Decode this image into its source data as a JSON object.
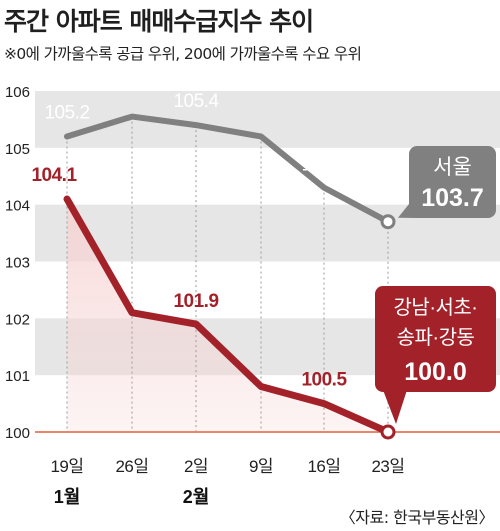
{
  "chart_data": {
    "type": "line",
    "title": "주간 아파트 매매수급지수 추이",
    "subtitle": "※0에 가까울수록 공급 우위, 200에 가까울수록 수요 우위",
    "x": [
      "19일",
      "26일",
      "2일",
      "9일",
      "16일",
      "23일"
    ],
    "month_labels": [
      {
        "index": 0,
        "label": "1월"
      },
      {
        "index": 2,
        "label": "2월"
      }
    ],
    "ylim": [
      100,
      106
    ],
    "yticks": [
      "100",
      "101",
      "102",
      "103",
      "104",
      "105",
      "106"
    ],
    "grid": "horizontal bands, dotted vertical lines",
    "series": [
      {
        "name": "서울",
        "values": [
          105.2,
          105.55,
          105.4,
          105.2,
          104.3,
          103.7
        ],
        "color": "#808080",
        "point_labels": [
          {
            "index": 0,
            "text": "105.2"
          },
          {
            "index": 2,
            "text": "105.4"
          },
          {
            "index": 4,
            "text": "104.3"
          }
        ],
        "callout": {
          "name": "서울",
          "value": "103.7"
        }
      },
      {
        "name": "강남·서초·송파·강동",
        "values": [
          104.1,
          102.1,
          101.9,
          100.8,
          100.5,
          100.0
        ],
        "color": "#a3222a",
        "point_labels": [
          {
            "index": 0,
            "text": "104.1"
          },
          {
            "index": 2,
            "text": "101.9"
          },
          {
            "index": 4,
            "text": "100.5"
          }
        ],
        "callout": {
          "name_lines": [
            "강남·서초·",
            "송파·강동"
          ],
          "value": "100.0"
        }
      }
    ],
    "baseline_color": "#e8876e",
    "band_color": "#e6e6e6",
    "red_area_color": "#f7d3d3"
  },
  "credit": "〈자료: 한국부동산원〉"
}
